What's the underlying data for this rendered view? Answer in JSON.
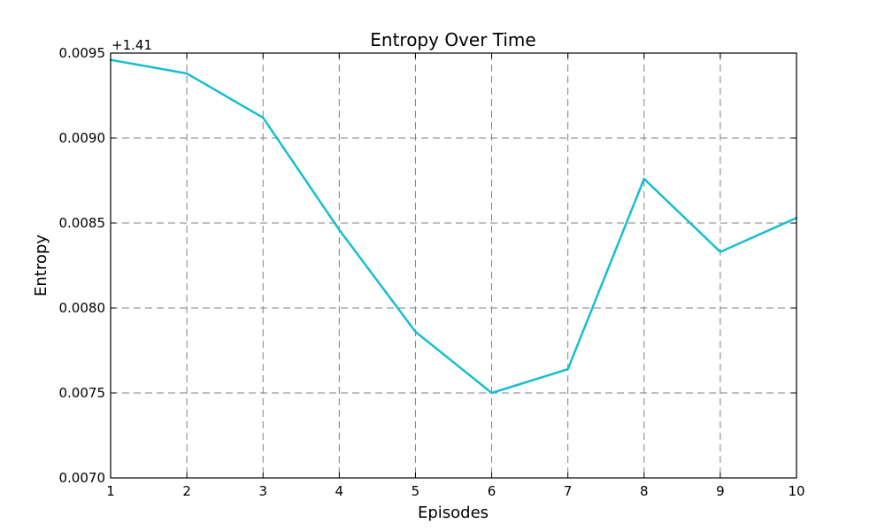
{
  "chart_data": {
    "type": "line",
    "title": "Entropy Over Time",
    "xlabel": "Episodes",
    "ylabel": "Entropy",
    "y_offset_label": "+1.41",
    "xlim": [
      1,
      10
    ],
    "ylim": [
      0.007,
      0.0095
    ],
    "x_ticks": [
      1,
      2,
      3,
      4,
      5,
      6,
      7,
      8,
      9,
      10
    ],
    "x_tick_labels": [
      "1",
      "2",
      "3",
      "4",
      "5",
      "6",
      "7",
      "8",
      "9",
      "10"
    ],
    "y_ticks": [
      0.007,
      0.0075,
      0.008,
      0.0085,
      0.009,
      0.0095
    ],
    "y_tick_labels": [
      "0.0070",
      "0.0075",
      "0.0080",
      "0.0085",
      "0.0090",
      "0.0095"
    ],
    "grid": true,
    "series": [
      {
        "color": "#17becf",
        "x": [
          1,
          2,
          3,
          4,
          5,
          6,
          7,
          8,
          9,
          10
        ],
        "y": [
          0.00946,
          0.00938,
          0.00912,
          0.00846,
          0.00786,
          0.0075,
          0.00764,
          0.00876,
          0.00833,
          0.00853
        ]
      }
    ]
  }
}
